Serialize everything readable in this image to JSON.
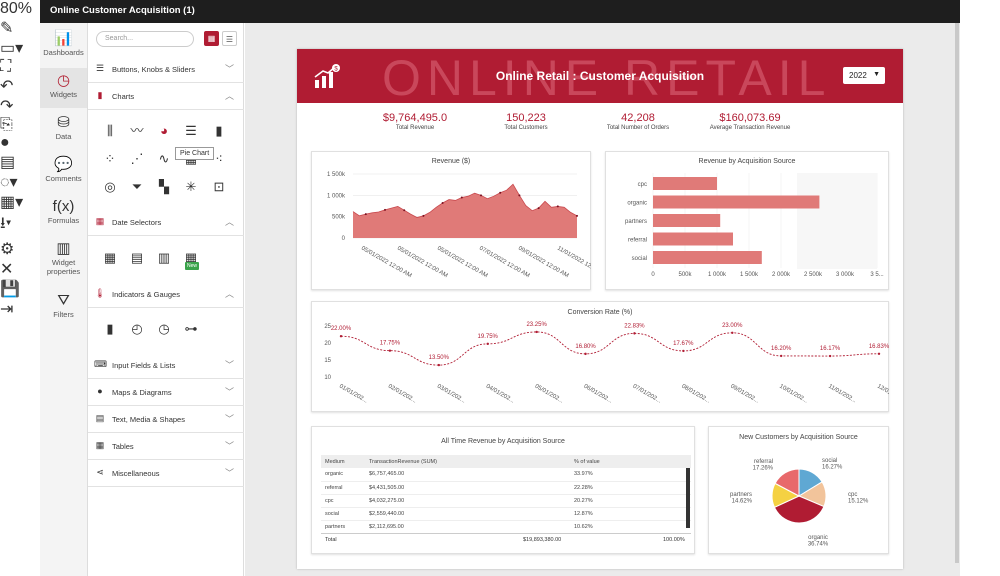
{
  "app": {
    "title": "Online Customer Acquisition (1)",
    "zoom": "80%"
  },
  "toolbar": [
    "✎",
    "▭▾",
    "⛶",
    "↶",
    "↷",
    "⎘",
    "●",
    "▤",
    "◌▾",
    "▦▾",
    "⭳▾",
    "⚙",
    "✕",
    "💾",
    "⇥"
  ],
  "rail": [
    {
      "label": "Dashboards",
      "icon": "chart-icon",
      "glyph": "📊",
      "active": false
    },
    {
      "label": "Widgets",
      "icon": "gauge-icon",
      "glyph": "◷",
      "active": true
    },
    {
      "label": "Data",
      "icon": "database-icon",
      "glyph": "⛁",
      "active": false
    },
    {
      "label": "Comments",
      "icon": "comments-icon",
      "glyph": "💬",
      "active": false
    },
    {
      "label": "Formulas",
      "icon": "formula-icon",
      "glyph": "f(x)",
      "active": false
    },
    {
      "label": "Widget properties",
      "icon": "properties-icon",
      "glyph": "▥",
      "active": false
    },
    {
      "label": "Filters",
      "icon": "filter-icon",
      "glyph": "⛛",
      "active": false
    }
  ],
  "panel": {
    "search_placeholder": "Search...",
    "sections": [
      {
        "label": "Buttons, Knobs & Sliders",
        "icon": "sliders-icon",
        "glyph": "☰",
        "chev": "﹀"
      },
      {
        "label": "Charts",
        "icon": "bar-chart-icon",
        "glyph": "▮",
        "chev": "︿",
        "accent": true
      },
      {
        "label": "Date Selectors",
        "icon": "calendar-icon",
        "glyph": "▦",
        "chev": "︿"
      },
      {
        "label": "Indicators & Gauges",
        "icon": "thermometer-icon",
        "glyph": "🌡",
        "chev": "︿"
      },
      {
        "label": "Input Fields & Lists",
        "icon": "input-icon",
        "glyph": "⌨",
        "chev": "﹀"
      },
      {
        "label": "Maps & Diagrams",
        "icon": "map-pin-icon",
        "glyph": "●",
        "chev": "﹀"
      },
      {
        "label": "Text, Media & Shapes",
        "icon": "text-icon",
        "glyph": "▤",
        "chev": "﹀"
      },
      {
        "label": "Tables",
        "icon": "table-icon",
        "glyph": "▦",
        "chev": "﹀"
      },
      {
        "label": "Miscellaneous",
        "icon": "share-icon",
        "glyph": "⋖",
        "chev": "﹀"
      }
    ],
    "tooltip": "Pie Chart",
    "new_tag": "New"
  },
  "dashboard": {
    "title": "Online Retail : Customer Acquisition",
    "watermark": "ONLINE RETAIL",
    "year": "2022",
    "kpis": [
      {
        "value": "$9,764,495.0",
        "label": "Total Revenue"
      },
      {
        "value": "150,223",
        "label": "Total Customers"
      },
      {
        "value": "42,208",
        "label": "Total Number of Orders"
      },
      {
        "value": "$160,073.69",
        "label": "Average Transaction Revenue"
      }
    ],
    "revenue_title": "Revenue ($)",
    "source_title": "Revenue by Acquisition Source",
    "conv_title": "Conversion Rate (%)",
    "table_title": "All Time Revenue by Acquisition Source",
    "pie_title": "New Customers by Acquisition Source",
    "table": {
      "headers": [
        "Medium",
        "TransactionRevenue (SUM)",
        "% of value"
      ],
      "rows": [
        [
          "organic",
          "$6,757,465.00",
          "33.97%"
        ],
        [
          "referral",
          "$4,431,505.00",
          "22.28%"
        ],
        [
          "cpc",
          "$4,032,275.00",
          "20.27%"
        ],
        [
          "social",
          "$2,559,440.00",
          "12.87%"
        ],
        [
          "partners",
          "$2,112,695.00",
          "10.62%"
        ]
      ],
      "total_label": "Total",
      "total_value": "$19,893,380.00",
      "total_pct": "100.00%"
    }
  },
  "chart_data": [
    {
      "type": "area",
      "title": "Revenue ($)",
      "yticks": [
        "0",
        "500k",
        "1 000k",
        "1 500k"
      ],
      "ylim": [
        0,
        1500000
      ],
      "xticks": [
        "05/01/2022 12:00 AM",
        "05/01/2022 12:00 AM",
        "05/01/2022 12:00 AM",
        "07/01/2022 12:00 AM",
        "09/01/2022 12:00 AM",
        "11/01/2022 12:00 AM"
      ],
      "values": [
        620000,
        520000,
        560000,
        590000,
        610000,
        660000,
        700000,
        740000,
        650000,
        560000,
        480000,
        520000,
        600000,
        720000,
        820000,
        900000,
        880000,
        950000,
        980000,
        1050000,
        1000000,
        920000,
        980000,
        1060000,
        1120000,
        1260000,
        1000000,
        760000,
        640000,
        700000,
        860000,
        720000,
        740000,
        720000,
        600000,
        520000
      ]
    },
    {
      "type": "bar",
      "orientation": "horizontal",
      "title": "Revenue by Acquisition Source",
      "categories": [
        "cpc",
        "organic",
        "partners",
        "referral",
        "social"
      ],
      "values": [
        1000000,
        2600000,
        1050000,
        1250000,
        1700000
      ],
      "xticks": [
        "0",
        "500k",
        "1 000k",
        "1 500k",
        "2 000k",
        "2 500k",
        "3 000k",
        "3 5..."
      ],
      "xlim": [
        0,
        3500000
      ]
    },
    {
      "type": "line",
      "title": "Conversion Rate (%)",
      "yticks": [
        "10",
        "15",
        "20",
        "25"
      ],
      "ylim": [
        10,
        25
      ],
      "x": [
        "01/01/202...",
        "02/01/202...",
        "03/01/202...",
        "04/01/202...",
        "05/01/202...",
        "06/01/202...",
        "07/01/202...",
        "08/01/202...",
        "09/01/202...",
        "10/01/202...",
        "11/01/202...",
        "12/01/2..."
      ],
      "values": [
        22.0,
        17.75,
        13.5,
        19.75,
        23.25,
        16.8,
        22.83,
        17.67,
        23.0,
        16.2,
        16.17,
        16.83
      ],
      "labels": [
        "22.00%",
        "17.75%",
        "13.50%",
        "19.75%",
        "23.25%",
        "16.80%",
        "22.83%",
        "17.67%",
        "23.00%",
        "16.20%",
        "16.17%",
        "16.83%"
      ]
    },
    {
      "type": "pie",
      "title": "New Customers by Acquisition Source",
      "slices": [
        {
          "name": "social",
          "value": 16.27,
          "label": "16.27%",
          "color": "#5fa8d3"
        },
        {
          "name": "cpc",
          "value": 15.12,
          "label": "15.12%",
          "color": "#f2c49b"
        },
        {
          "name": "organic",
          "value": 36.74,
          "label": "36.74%",
          "color": "#b01c33"
        },
        {
          "name": "partners",
          "value": 14.62,
          "label": "14.62%",
          "color": "#f5d142"
        },
        {
          "name": "referral",
          "value": 17.26,
          "label": "17.26%",
          "color": "#e8696b"
        }
      ]
    }
  ]
}
